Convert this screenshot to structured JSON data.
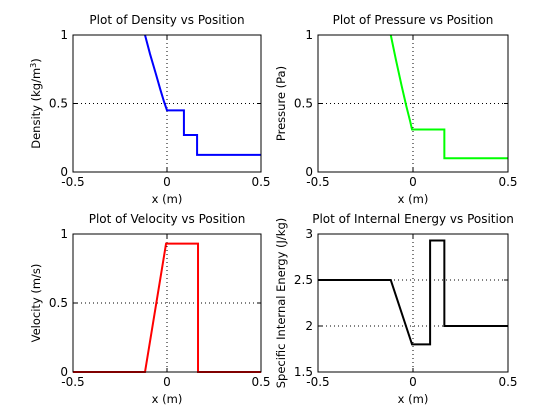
{
  "figure_background": "#ffffff",
  "chart_data": [
    {
      "id": "density",
      "type": "line",
      "title": "Plot of Density vs Position",
      "xlabel": "x (m)",
      "ylabel": "Density (kg/m3)",
      "ylabel_main": "Density (kg/m",
      "ylabel_sup": "3",
      "ylabel_tail": ")",
      "xlim": [
        -0.5,
        0.5
      ],
      "ylim": [
        0,
        1
      ],
      "xticks": [
        -0.5,
        0,
        0.5
      ],
      "xtick_labels": [
        "-0.5",
        "0",
        "0.5"
      ],
      "yticks": [
        0,
        0.5,
        1
      ],
      "ytick_labels": [
        "0",
        "0.5",
        "1"
      ],
      "grid": true,
      "series": [
        {
          "color": "#0000ff",
          "x": [
            -0.117,
            -0.09,
            -0.06,
            -0.035,
            -0.015,
            0.0,
            0.09,
            0.09,
            0.16,
            0.16,
            0.5
          ],
          "y": [
            1.0,
            0.86,
            0.72,
            0.6,
            0.51,
            0.45,
            0.45,
            0.27,
            0.27,
            0.125,
            0.125
          ]
        }
      ]
    },
    {
      "id": "pressure",
      "type": "line",
      "title": "Plot of Pressure vs Position",
      "xlabel": "x (m)",
      "ylabel": "Pressure (Pa)",
      "xlim": [
        -0.5,
        0.5
      ],
      "ylim": [
        0,
        1
      ],
      "xticks": [
        -0.5,
        0,
        0.5
      ],
      "xtick_labels": [
        "-0.5",
        "0",
        "0.5"
      ],
      "yticks": [
        0,
        0.5,
        1
      ],
      "ytick_labels": [
        "0",
        "0.5",
        "1"
      ],
      "grid": true,
      "series": [
        {
          "color": "#00ff00",
          "x": [
            -0.117,
            -0.09,
            -0.06,
            -0.035,
            -0.015,
            -0.005,
            0.165,
            0.165,
            0.5
          ],
          "y": [
            1.0,
            0.82,
            0.63,
            0.48,
            0.37,
            0.31,
            0.31,
            0.1,
            0.1
          ]
        }
      ]
    },
    {
      "id": "velocity",
      "type": "line",
      "title": "Plot of Velocity vs Position",
      "xlabel": "x (m)",
      "ylabel": "Velocity (m/s)",
      "xlim": [
        -0.5,
        0.5
      ],
      "ylim": [
        0,
        1
      ],
      "xticks": [
        -0.5,
        0,
        0.5
      ],
      "xtick_labels": [
        "-0.5",
        "0",
        "0.5"
      ],
      "yticks": [
        0,
        0.5,
        1
      ],
      "ytick_labels": [
        "0",
        "0.5",
        "1"
      ],
      "grid": true,
      "series": [
        {
          "color": "#ff0000",
          "x": [
            -0.5,
            -0.117,
            -0.005,
            0.165,
            0.165,
            0.5
          ],
          "y": [
            0,
            0,
            0.93,
            0.93,
            0,
            0
          ]
        }
      ]
    },
    {
      "id": "energy",
      "type": "line",
      "title": "Plot of Internal Energy vs Position",
      "xlabel": "x (m)",
      "ylabel": "Specific Internal Energy (J/kg)",
      "xlim": [
        -0.5,
        0.5
      ],
      "ylim": [
        1.5,
        3
      ],
      "xticks": [
        -0.5,
        0,
        0.5
      ],
      "xtick_labels": [
        "-0.5",
        "0",
        "0.5"
      ],
      "yticks": [
        1.5,
        2,
        2.5,
        3
      ],
      "ytick_labels": [
        "1.5",
        "2",
        "2.5",
        "3"
      ],
      "grid": true,
      "series": [
        {
          "color": "#000000",
          "x": [
            -0.5,
            -0.117,
            -0.005,
            0.09,
            0.09,
            0.165,
            0.165,
            0.5
          ],
          "y": [
            2.5,
            2.5,
            1.8,
            1.8,
            2.93,
            2.93,
            2.0,
            2.0
          ]
        }
      ]
    }
  ]
}
